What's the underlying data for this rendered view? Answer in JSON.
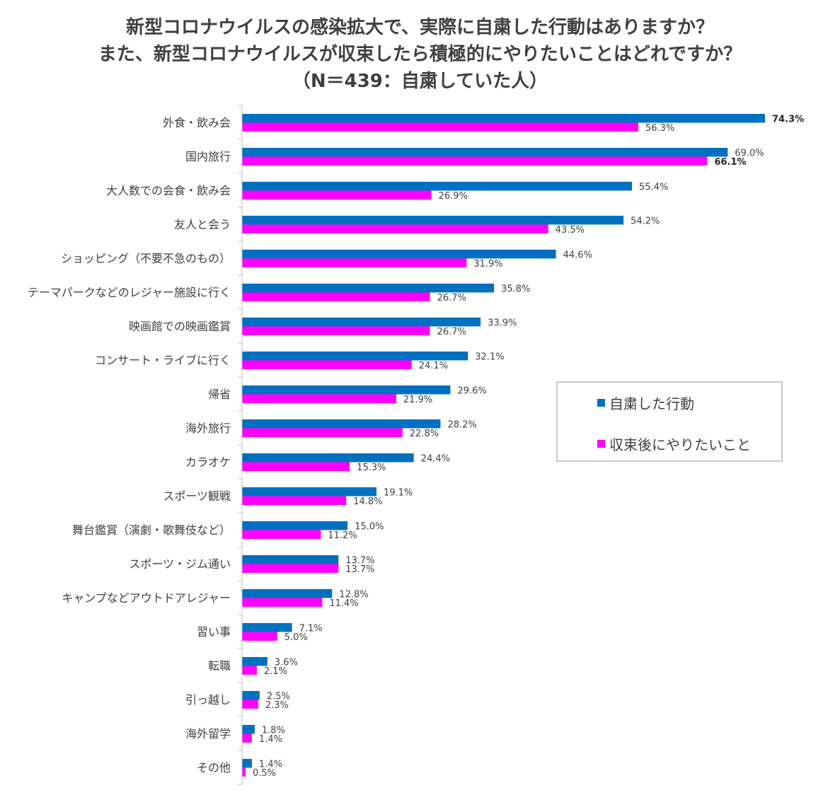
{
  "title_lines": [
    "新型コロナウイルスの感染拡大で、実際に自粛した行動はありますか？",
    "また、新型コロナウイルスが収束したら積極的にやりたいことはどれですか？",
    "（N＝439：自粛していた人）"
  ],
  "colors": {
    "series1": "#0070c0",
    "series2": "#ff00ff",
    "axis": "#bfbfbf",
    "text": "#404040"
  },
  "legend": [
    {
      "label": "自粛した行動",
      "color": "#0070c0"
    },
    {
      "label": "収束後にやりたいこと",
      "color": "#ff00ff"
    }
  ],
  "chart_data": {
    "type": "bar",
    "orientation": "horizontal",
    "categories": [
      "外食・飲み会",
      "国内旅行",
      "大人数での会食・飲み会",
      "友人と会う",
      "ショッピング（不要不急のもの）",
      "テーマパークなどのレジャー施設に行く",
      "映画館での映画鑑賞",
      "コンサート・ライブに行く",
      "帰省",
      "海外旅行",
      "カラオケ",
      "スポーツ観戦",
      "舞台鑑賞（演劇・歌舞伎など）",
      "スポーツ・ジム通い",
      "キャンプなどアウトドアレジャー",
      "習い事",
      "転職",
      "引っ越し",
      "海外留学",
      "その他"
    ],
    "series": [
      {
        "name": "自粛した行動",
        "color": "#0070c0",
        "values": [
          74.3,
          69.0,
          55.4,
          54.2,
          44.6,
          35.8,
          33.9,
          32.1,
          29.6,
          28.2,
          24.4,
          19.1,
          15.0,
          13.7,
          12.8,
          7.1,
          3.6,
          2.5,
          1.8,
          1.4
        ]
      },
      {
        "name": "収束後にやりたいこと",
        "color": "#ff00ff",
        "values": [
          56.3,
          66.1,
          26.9,
          43.5,
          31.9,
          26.7,
          26.7,
          24.1,
          21.9,
          22.8,
          15.3,
          14.8,
          11.2,
          13.7,
          11.4,
          5.0,
          2.1,
          2.3,
          1.4,
          0.5
        ]
      }
    ],
    "value_format": "%",
    "highlight": {
      "series": [
        0,
        1
      ],
      "index": [
        0,
        1
      ]
    },
    "xlim": [
      0,
      80
    ],
    "grid": false,
    "legend_position": "right"
  }
}
